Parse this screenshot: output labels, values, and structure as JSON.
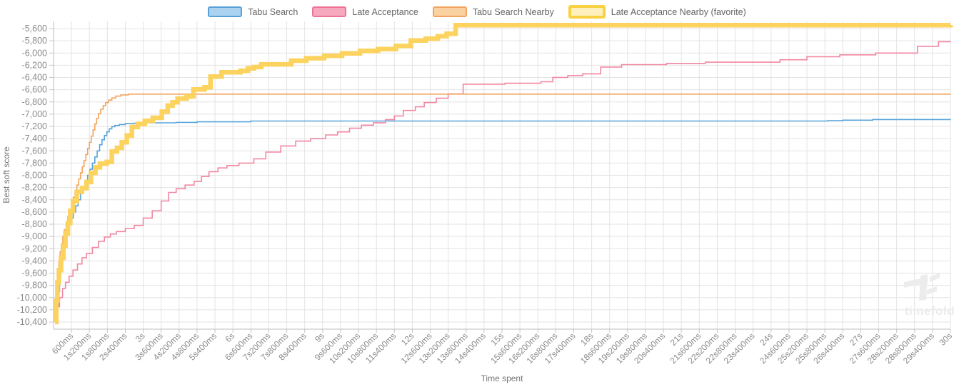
{
  "legend": {
    "items": [
      {
        "slug": "tabu-search",
        "label": "Tabu Search",
        "fill": "#abd3f0",
        "border": "#57a1d8",
        "border_width": 2
      },
      {
        "slug": "late-acceptance",
        "label": "Late Acceptance",
        "fill": "#f6a8bf",
        "border": "#ee7294",
        "border_width": 2
      },
      {
        "slug": "tabu-search-nearby",
        "label": "Tabu Search Nearby",
        "fill": "#fad1a0",
        "border": "#f2a35c",
        "border_width": 2
      },
      {
        "slug": "late-acceptance-nearby",
        "label": "Late Acceptance Nearby (favorite)",
        "fill": "#fdf0bd",
        "border": "#f9d243",
        "border_width": 4
      }
    ]
  },
  "axes": {
    "x_label": "Time spent",
    "y_label": "Best soft score",
    "y_ticks": [
      {
        "v": -5600,
        "label": "-5,600"
      },
      {
        "v": -5800,
        "label": "-5,800"
      },
      {
        "v": -6000,
        "label": "-6,000"
      },
      {
        "v": -6200,
        "label": "-6,200"
      },
      {
        "v": -6400,
        "label": "-6,400"
      },
      {
        "v": -6600,
        "label": "-6,600"
      },
      {
        "v": -6800,
        "label": "-6,800"
      },
      {
        "v": -7000,
        "label": "-7,000"
      },
      {
        "v": -7200,
        "label": "-7,200"
      },
      {
        "v": -7400,
        "label": "-7,400"
      },
      {
        "v": -7600,
        "label": "-7,600"
      },
      {
        "v": -7800,
        "label": "-7,800"
      },
      {
        "v": -8000,
        "label": "-8,000"
      },
      {
        "v": -8200,
        "label": "-8,200"
      },
      {
        "v": -8400,
        "label": "-8,400"
      },
      {
        "v": -8600,
        "label": "-8,600"
      },
      {
        "v": -8800,
        "label": "-8,800"
      },
      {
        "v": -9000,
        "label": "-9,000"
      },
      {
        "v": -9200,
        "label": "-9,200"
      },
      {
        "v": -9400,
        "label": "-9,400"
      },
      {
        "v": -9600,
        "label": "-9,600"
      },
      {
        "v": -9800,
        "label": "-9,800"
      },
      {
        "v": -10000,
        "label": "-10,000"
      },
      {
        "v": -10200,
        "label": "-10,200"
      },
      {
        "v": -10400,
        "label": "-10,400"
      }
    ],
    "x_ticks": [
      {
        "s": 0.6,
        "label": "600ms"
      },
      {
        "s": 1.2,
        "label": "1s200ms"
      },
      {
        "s": 1.8,
        "label": "1s800ms"
      },
      {
        "s": 2.4,
        "label": "2s400ms"
      },
      {
        "s": 3,
        "label": "3s"
      },
      {
        "s": 3.6,
        "label": "3s600ms"
      },
      {
        "s": 4.2,
        "label": "4s200ms"
      },
      {
        "s": 4.8,
        "label": "4s800ms"
      },
      {
        "s": 5.4,
        "label": "5s400ms"
      },
      {
        "s": 6,
        "label": "6s"
      },
      {
        "s": 6.6,
        "label": "6s600ms"
      },
      {
        "s": 7.2,
        "label": "7s200ms"
      },
      {
        "s": 7.8,
        "label": "7s800ms"
      },
      {
        "s": 8.4,
        "label": "8s400ms"
      },
      {
        "s": 9,
        "label": "9s"
      },
      {
        "s": 9.6,
        "label": "9s600ms"
      },
      {
        "s": 10.2,
        "label": "10s200ms"
      },
      {
        "s": 10.8,
        "label": "10s800ms"
      },
      {
        "s": 11.4,
        "label": "11s400ms"
      },
      {
        "s": 12,
        "label": "12s"
      },
      {
        "s": 12.6,
        "label": "12s600ms"
      },
      {
        "s": 13.2,
        "label": "13s200ms"
      },
      {
        "s": 13.8,
        "label": "13s800ms"
      },
      {
        "s": 14.4,
        "label": "14s400ms"
      },
      {
        "s": 15,
        "label": "15s"
      },
      {
        "s": 15.6,
        "label": "15s600ms"
      },
      {
        "s": 16.2,
        "label": "16s200ms"
      },
      {
        "s": 16.8,
        "label": "16s800ms"
      },
      {
        "s": 17.4,
        "label": "17s400ms"
      },
      {
        "s": 18,
        "label": "18s"
      },
      {
        "s": 18.6,
        "label": "18s600ms"
      },
      {
        "s": 19.2,
        "label": "19s200ms"
      },
      {
        "s": 19.8,
        "label": "19s800ms"
      },
      {
        "s": 20.4,
        "label": "20s400ms"
      },
      {
        "s": 21,
        "label": "21s"
      },
      {
        "s": 21.6,
        "label": "21s600ms"
      },
      {
        "s": 22.2,
        "label": "22s200ms"
      },
      {
        "s": 22.8,
        "label": "22s800ms"
      },
      {
        "s": 23.4,
        "label": "23s400ms"
      },
      {
        "s": 24,
        "label": "24s"
      },
      {
        "s": 24.6,
        "label": "24s600ms"
      },
      {
        "s": 25.2,
        "label": "25s200ms"
      },
      {
        "s": 25.8,
        "label": "25s800ms"
      },
      {
        "s": 26.4,
        "label": "26s400ms"
      },
      {
        "s": 27,
        "label": "27s"
      },
      {
        "s": 27.6,
        "label": "27s600ms"
      },
      {
        "s": 28.2,
        "label": "28s200ms"
      },
      {
        "s": 28.8,
        "label": "28s800ms"
      },
      {
        "s": 29.4,
        "label": "29s400ms"
      },
      {
        "s": 30,
        "label": "30s"
      }
    ]
  },
  "watermark": {
    "text": "timefold"
  },
  "colors": {
    "grid": "#e3e3e3",
    "axis_line": "#bdbdbd",
    "tick_mark": "#c6c6c6",
    "tick_text": "#8b8b8b",
    "axis_title_text": "#757575",
    "legend_text": "#666666",
    "watermark": "#ececec"
  },
  "chart_data": {
    "type": "line",
    "title": "",
    "xlabel": "Time spent",
    "ylabel": "Best soft score",
    "x_unit": "seconds",
    "xlim": [
      0,
      30
    ],
    "ylim": [
      -10400,
      -5600
    ],
    "y_tick_step": 200,
    "x_tick_step_seconds": 0.6,
    "grid": true,
    "legend_position": "top",
    "interpolation": "step-after",
    "series": [
      {
        "name": "Tabu Search",
        "slug": "tabu-search",
        "color": "#58a3da",
        "stroke_width": 1.6,
        "points": [
          [
            0.1,
            -10400
          ],
          [
            0.13,
            -10150
          ],
          [
            0.16,
            -9900
          ],
          [
            0.2,
            -9650
          ],
          [
            0.24,
            -9450
          ],
          [
            0.28,
            -9300
          ],
          [
            0.33,
            -9150
          ],
          [
            0.38,
            -9000
          ],
          [
            0.44,
            -8900
          ],
          [
            0.5,
            -8800
          ],
          [
            0.58,
            -8700
          ],
          [
            0.66,
            -8600
          ],
          [
            0.74,
            -8500
          ],
          [
            0.82,
            -8400
          ],
          [
            0.9,
            -8300
          ],
          [
            0.98,
            -8200
          ],
          [
            1.06,
            -8100
          ],
          [
            1.14,
            -8000
          ],
          [
            1.22,
            -7900
          ],
          [
            1.3,
            -7800
          ],
          [
            1.38,
            -7700
          ],
          [
            1.46,
            -7600
          ],
          [
            1.54,
            -7500
          ],
          [
            1.62,
            -7420
          ],
          [
            1.7,
            -7350
          ],
          [
            1.78,
            -7290
          ],
          [
            1.86,
            -7240
          ],
          [
            1.95,
            -7205
          ],
          [
            2.05,
            -7185
          ],
          [
            2.2,
            -7170
          ],
          [
            2.4,
            -7155
          ],
          [
            2.7,
            -7148
          ],
          [
            3.1,
            -7142
          ],
          [
            4.1,
            -7135
          ],
          [
            4.8,
            -7125
          ],
          [
            6.6,
            -7112
          ],
          [
            25.9,
            -7108
          ],
          [
            26.4,
            -7098
          ],
          [
            27.4,
            -7088
          ],
          [
            30,
            -7086
          ]
        ]
      },
      {
        "name": "Late Acceptance",
        "slug": "late-acceptance",
        "color": "#f286a0",
        "stroke_width": 1.6,
        "points": [
          [
            0.05,
            -10350
          ],
          [
            0.12,
            -10150
          ],
          [
            0.2,
            -10000
          ],
          [
            0.3,
            -9850
          ],
          [
            0.4,
            -9750
          ],
          [
            0.52,
            -9650
          ],
          [
            0.65,
            -9550
          ],
          [
            0.8,
            -9450
          ],
          [
            0.95,
            -9350
          ],
          [
            1.1,
            -9280
          ],
          [
            1.3,
            -9180
          ],
          [
            1.5,
            -9080
          ],
          [
            1.7,
            -9010
          ],
          [
            1.9,
            -8960
          ],
          [
            2.1,
            -8920
          ],
          [
            2.4,
            -8870
          ],
          [
            2.7,
            -8820
          ],
          [
            3.0,
            -8700
          ],
          [
            3.3,
            -8580
          ],
          [
            3.6,
            -8420
          ],
          [
            3.85,
            -8280
          ],
          [
            4.1,
            -8220
          ],
          [
            4.4,
            -8160
          ],
          [
            4.7,
            -8100
          ],
          [
            4.95,
            -8020
          ],
          [
            5.2,
            -7940
          ],
          [
            5.5,
            -7880
          ],
          [
            5.8,
            -7840
          ],
          [
            6.2,
            -7800
          ],
          [
            6.7,
            -7730
          ],
          [
            7.1,
            -7620
          ],
          [
            7.6,
            -7520
          ],
          [
            8.1,
            -7440
          ],
          [
            8.6,
            -7400
          ],
          [
            9.1,
            -7340
          ],
          [
            9.5,
            -7290
          ],
          [
            9.9,
            -7230
          ],
          [
            10.3,
            -7180
          ],
          [
            10.7,
            -7140
          ],
          [
            11.1,
            -7090
          ],
          [
            11.4,
            -7030
          ],
          [
            11.7,
            -6940
          ],
          [
            12.1,
            -6880
          ],
          [
            12.4,
            -6810
          ],
          [
            12.8,
            -6740
          ],
          [
            13.2,
            -6670
          ],
          [
            13.7,
            -6510
          ],
          [
            15.1,
            -6495
          ],
          [
            16.3,
            -6470
          ],
          [
            16.7,
            -6400
          ],
          [
            17.2,
            -6370
          ],
          [
            17.7,
            -6340
          ],
          [
            18.3,
            -6230
          ],
          [
            19.0,
            -6190
          ],
          [
            20.5,
            -6170
          ],
          [
            21.8,
            -6150
          ],
          [
            24.3,
            -6110
          ],
          [
            25.2,
            -6060
          ],
          [
            26.3,
            -6030
          ],
          [
            27.5,
            -6000
          ],
          [
            28.9,
            -5890
          ],
          [
            29.6,
            -5815
          ],
          [
            30,
            -5805
          ]
        ]
      },
      {
        "name": "Tabu Search Nearby",
        "slug": "tabu-search-nearby",
        "color": "#f2a35c",
        "stroke_width": 1.6,
        "points": [
          [
            0.05,
            -10350
          ],
          [
            0.08,
            -10100
          ],
          [
            0.11,
            -9850
          ],
          [
            0.14,
            -9600
          ],
          [
            0.18,
            -9400
          ],
          [
            0.22,
            -9250
          ],
          [
            0.26,
            -9120
          ],
          [
            0.31,
            -9000
          ],
          [
            0.36,
            -8890
          ],
          [
            0.42,
            -8780
          ],
          [
            0.48,
            -8670
          ],
          [
            0.54,
            -8560
          ],
          [
            0.6,
            -8460
          ],
          [
            0.66,
            -8360
          ],
          [
            0.72,
            -8260
          ],
          [
            0.78,
            -8160
          ],
          [
            0.84,
            -8060
          ],
          [
            0.9,
            -7960
          ],
          [
            0.96,
            -7860
          ],
          [
            1.02,
            -7760
          ],
          [
            1.08,
            -7660
          ],
          [
            1.14,
            -7560
          ],
          [
            1.2,
            -7460
          ],
          [
            1.26,
            -7360
          ],
          [
            1.32,
            -7260
          ],
          [
            1.38,
            -7160
          ],
          [
            1.44,
            -7070
          ],
          [
            1.5,
            -6990
          ],
          [
            1.58,
            -6920
          ],
          [
            1.66,
            -6860
          ],
          [
            1.74,
            -6810
          ],
          [
            1.84,
            -6770
          ],
          [
            1.95,
            -6735
          ],
          [
            2.08,
            -6705
          ],
          [
            2.25,
            -6685
          ],
          [
            2.5,
            -6672
          ],
          [
            30,
            -6670
          ]
        ]
      },
      {
        "name": "Late Acceptance Nearby (favorite)",
        "slug": "late-acceptance-nearby",
        "color": "#fbd35e",
        "stroke_width": 6.5,
        "points": [
          [
            0.05,
            -10400
          ],
          [
            0.09,
            -10050
          ],
          [
            0.13,
            -9750
          ],
          [
            0.18,
            -9550
          ],
          [
            0.25,
            -9350
          ],
          [
            0.33,
            -9150
          ],
          [
            0.4,
            -8950
          ],
          [
            0.48,
            -8780
          ],
          [
            0.56,
            -8580
          ],
          [
            0.65,
            -8420
          ],
          [
            0.78,
            -8270
          ],
          [
            0.95,
            -8210
          ],
          [
            1.1,
            -8110
          ],
          [
            1.25,
            -7960
          ],
          [
            1.4,
            -7870
          ],
          [
            1.55,
            -7810
          ],
          [
            1.78,
            -7780
          ],
          [
            1.95,
            -7610
          ],
          [
            2.12,
            -7550
          ],
          [
            2.28,
            -7460
          ],
          [
            2.45,
            -7350
          ],
          [
            2.62,
            -7210
          ],
          [
            2.82,
            -7160
          ],
          [
            3.05,
            -7110
          ],
          [
            3.32,
            -7060
          ],
          [
            3.62,
            -6960
          ],
          [
            3.82,
            -6860
          ],
          [
            3.98,
            -6805
          ],
          [
            4.15,
            -6745
          ],
          [
            4.45,
            -6710
          ],
          [
            4.68,
            -6595
          ],
          [
            5.05,
            -6560
          ],
          [
            5.25,
            -6385
          ],
          [
            5.62,
            -6315
          ],
          [
            6.25,
            -6290
          ],
          [
            6.5,
            -6250
          ],
          [
            6.7,
            -6230
          ],
          [
            6.95,
            -6185
          ],
          [
            7.95,
            -6125
          ],
          [
            8.45,
            -6085
          ],
          [
            9.05,
            -6045
          ],
          [
            9.65,
            -6005
          ],
          [
            10.25,
            -5965
          ],
          [
            10.85,
            -5935
          ],
          [
            11.45,
            -5885
          ],
          [
            11.95,
            -5795
          ],
          [
            12.45,
            -5765
          ],
          [
            12.85,
            -5725
          ],
          [
            13.15,
            -5685
          ],
          [
            13.45,
            -5545
          ],
          [
            30,
            -5542
          ]
        ]
      }
    ]
  }
}
